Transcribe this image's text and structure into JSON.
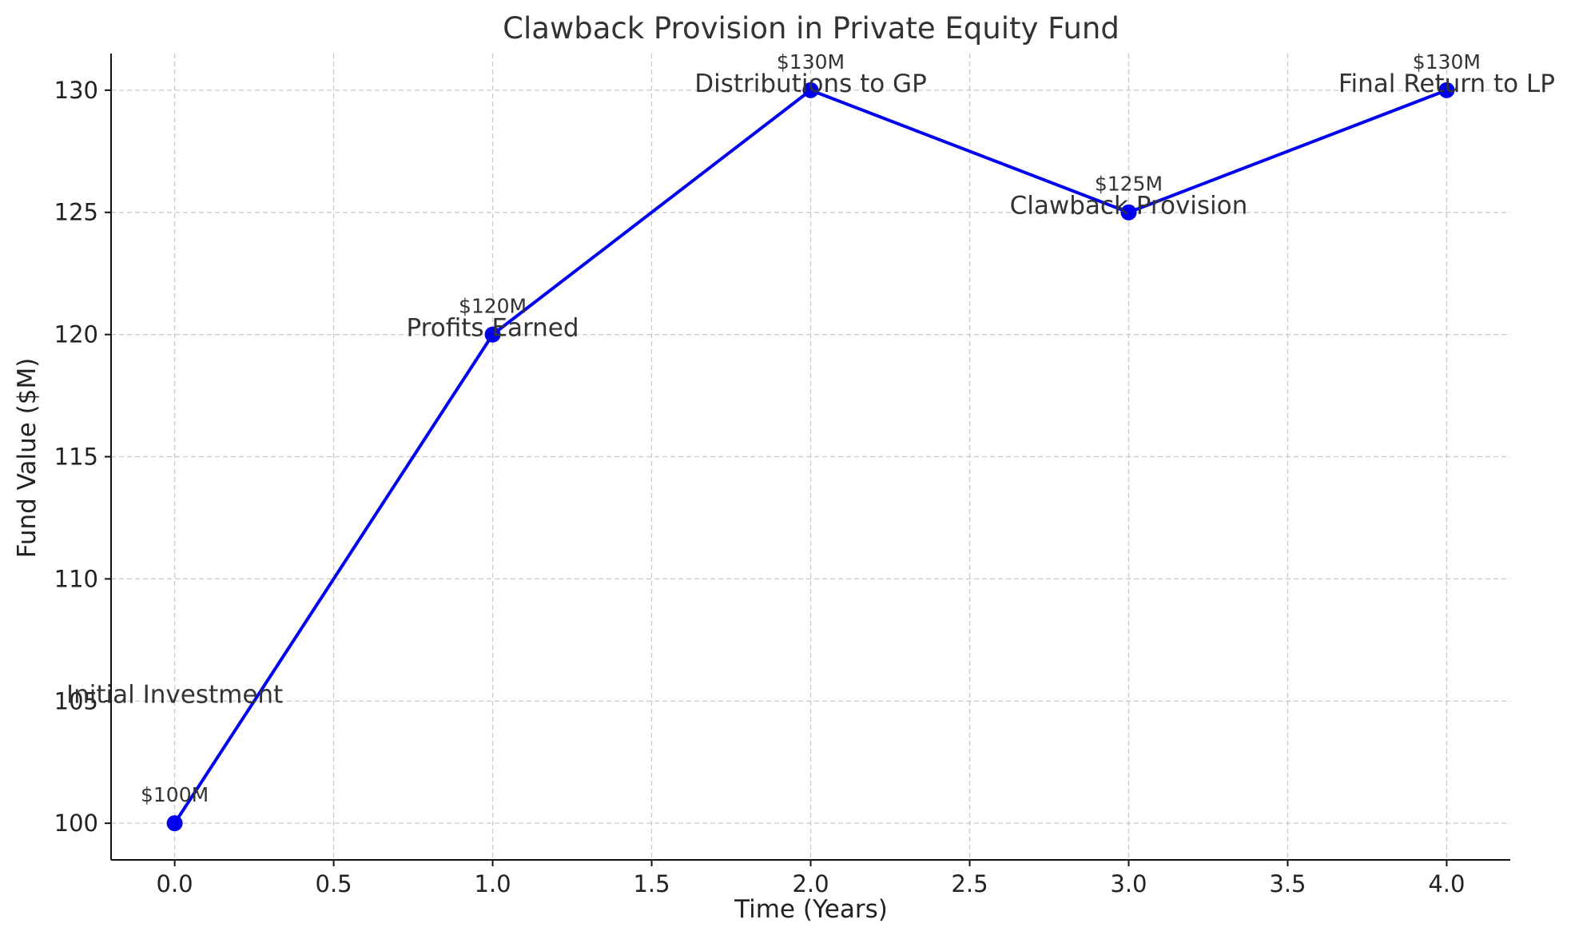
{
  "chart_data": {
    "type": "line",
    "title": "Clawback Provision in Private Equity Fund",
    "xlabel": "Time (Years)",
    "ylabel": "Fund Value ($M)",
    "xlim": [
      -0.2,
      4.2
    ],
    "ylim": [
      98.5,
      131.5
    ],
    "xticks": [
      0.0,
      0.5,
      1.0,
      1.5,
      2.0,
      2.5,
      3.0,
      3.5,
      4.0
    ],
    "xtick_labels": [
      "0.0",
      "0.5",
      "1.0",
      "1.5",
      "2.0",
      "2.5",
      "3.0",
      "3.5",
      "4.0"
    ],
    "yticks": [
      100,
      105,
      110,
      115,
      120,
      125,
      130
    ],
    "ytick_labels": [
      "100",
      "105",
      "110",
      "115",
      "120",
      "125",
      "130"
    ],
    "grid": true,
    "line_color": "#0000ee",
    "series": [
      {
        "x": [
          0,
          1,
          2,
          3,
          4
        ],
        "values": [
          100,
          120,
          130,
          125,
          130
        ],
        "value_labels": [
          "$100M",
          "$120M",
          "$130M",
          "$125M",
          "$130M"
        ]
      }
    ],
    "annotations": [
      {
        "text": "Initial Investment",
        "x": 0,
        "y": 105
      },
      {
        "text": "Profits Earned",
        "x": 1,
        "y": 120
      },
      {
        "text": "Distributions to GP",
        "x": 2,
        "y": 130
      },
      {
        "text": "Clawback Provision",
        "x": 3,
        "y": 125
      },
      {
        "text": "Final Return to LP",
        "x": 4,
        "y": 130
      }
    ]
  }
}
